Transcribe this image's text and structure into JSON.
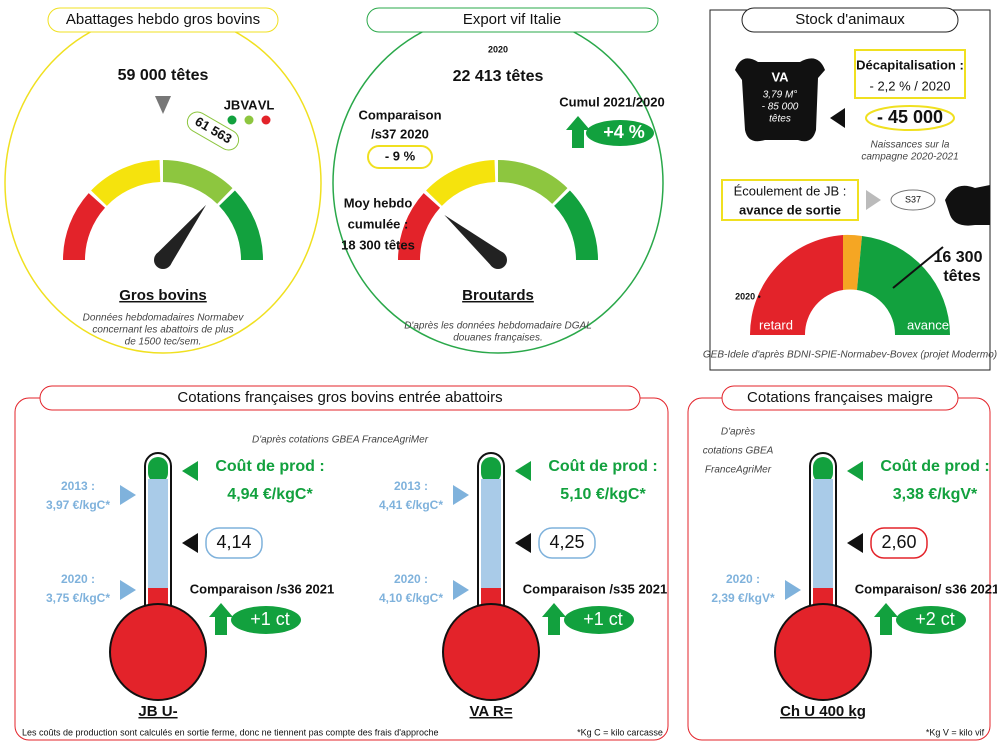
{
  "abattages": {
    "title": "Abattages hebdo gros bovins",
    "value": "59 000 têtes",
    "legend": [
      "JB",
      "VA",
      "VL"
    ],
    "marker": "61 563",
    "label": "Gros bovins",
    "source": [
      "Données hebdomadaires Normabev",
      "concernant les abattoirs de plus",
      "de 1500 tec/sem."
    ]
  },
  "export": {
    "title": "Export vif Italie",
    "year": "2020",
    "value": "22 413 têtes",
    "comparaison_label": [
      "Comparaison",
      "/s37 2020"
    ],
    "comparaison": "- 9 %",
    "cumul_label": "Cumul 2021/2020",
    "cumul": "+4 %",
    "moy": [
      "Moy hebdo",
      "cumulée :",
      "18 300 têtes"
    ],
    "label": "Broutards",
    "source": [
      "D'après les données hebdomadaire DGAL",
      "douanes françaises."
    ]
  },
  "stock": {
    "title": "Stock d'animaux",
    "va": "VA",
    "va_detail": [
      "3,79 M°",
      "- 85 000",
      "têtes"
    ],
    "decap_label": "Décapitalisation :",
    "decap": "- 2,2 % / 2020",
    "decap_value": "- 45 000",
    "naissances": [
      "Naissances sur la",
      "campagne 2020-2021"
    ],
    "ecoulement_label": "Écoulement de JB :",
    "ecoulement": "avance de sortie",
    "week": "S37",
    "year": "2020 •",
    "value": "16 300",
    "unit": "têtes",
    "retard": "retard",
    "avance": "avance",
    "source": "GEB-Idele d'après BDNI-SPIE-Normabev-Bovex (projet Modermo)"
  },
  "cotations": {
    "title": "Cotations françaises gros bovins entrée abattoirs",
    "source": "D'après cotations GBEA FranceAgriMer",
    "thermometers": [
      {
        "cout_label": "Coût de prod :",
        "cout": "4,94 €/kgC*",
        "y2013": [
          "2013 :",
          "3,97 €/kgC*"
        ],
        "y2020": [
          "2020 :",
          "3,75 €/kgC*"
        ],
        "current": "4,14",
        "comparaison": "Comparaison /s36 2021",
        "delta": "+1 ct",
        "label": "JB U-"
      },
      {
        "cout_label": "Coût de prod :",
        "cout": "5,10 €/kgC*",
        "y2013": [
          "2013 :",
          "4,41 €/kgC*"
        ],
        "y2020": [
          "2020 :",
          "4,10 €/kgC*"
        ],
        "current": "4,25",
        "comparaison": "Comparaison /s35 2021",
        "delta": "+1 ct",
        "label": "VA R="
      }
    ],
    "footnote": "Les coûts de production sont calculés en sortie ferme, donc ne tiennent pas compte des frais d'approche",
    "note": "*Kg C = kilo carcasse"
  },
  "maigre": {
    "title": "Cotations françaises maigre",
    "source": [
      "D'après",
      "cotations GBEA",
      "FranceAgriMer"
    ],
    "thermometer": {
      "cout_label": "Coût de prod :",
      "cout": "3,38 €/kgV*",
      "y2020": [
        "2020 :",
        "2,39 €/kgV*"
      ],
      "current": "2,60",
      "comparaison": "Comparaison/ s36 2021",
      "delta": "+2 ct",
      "label": "Ch U 400 kg"
    },
    "note": "*Kg V = kilo vif"
  }
}
